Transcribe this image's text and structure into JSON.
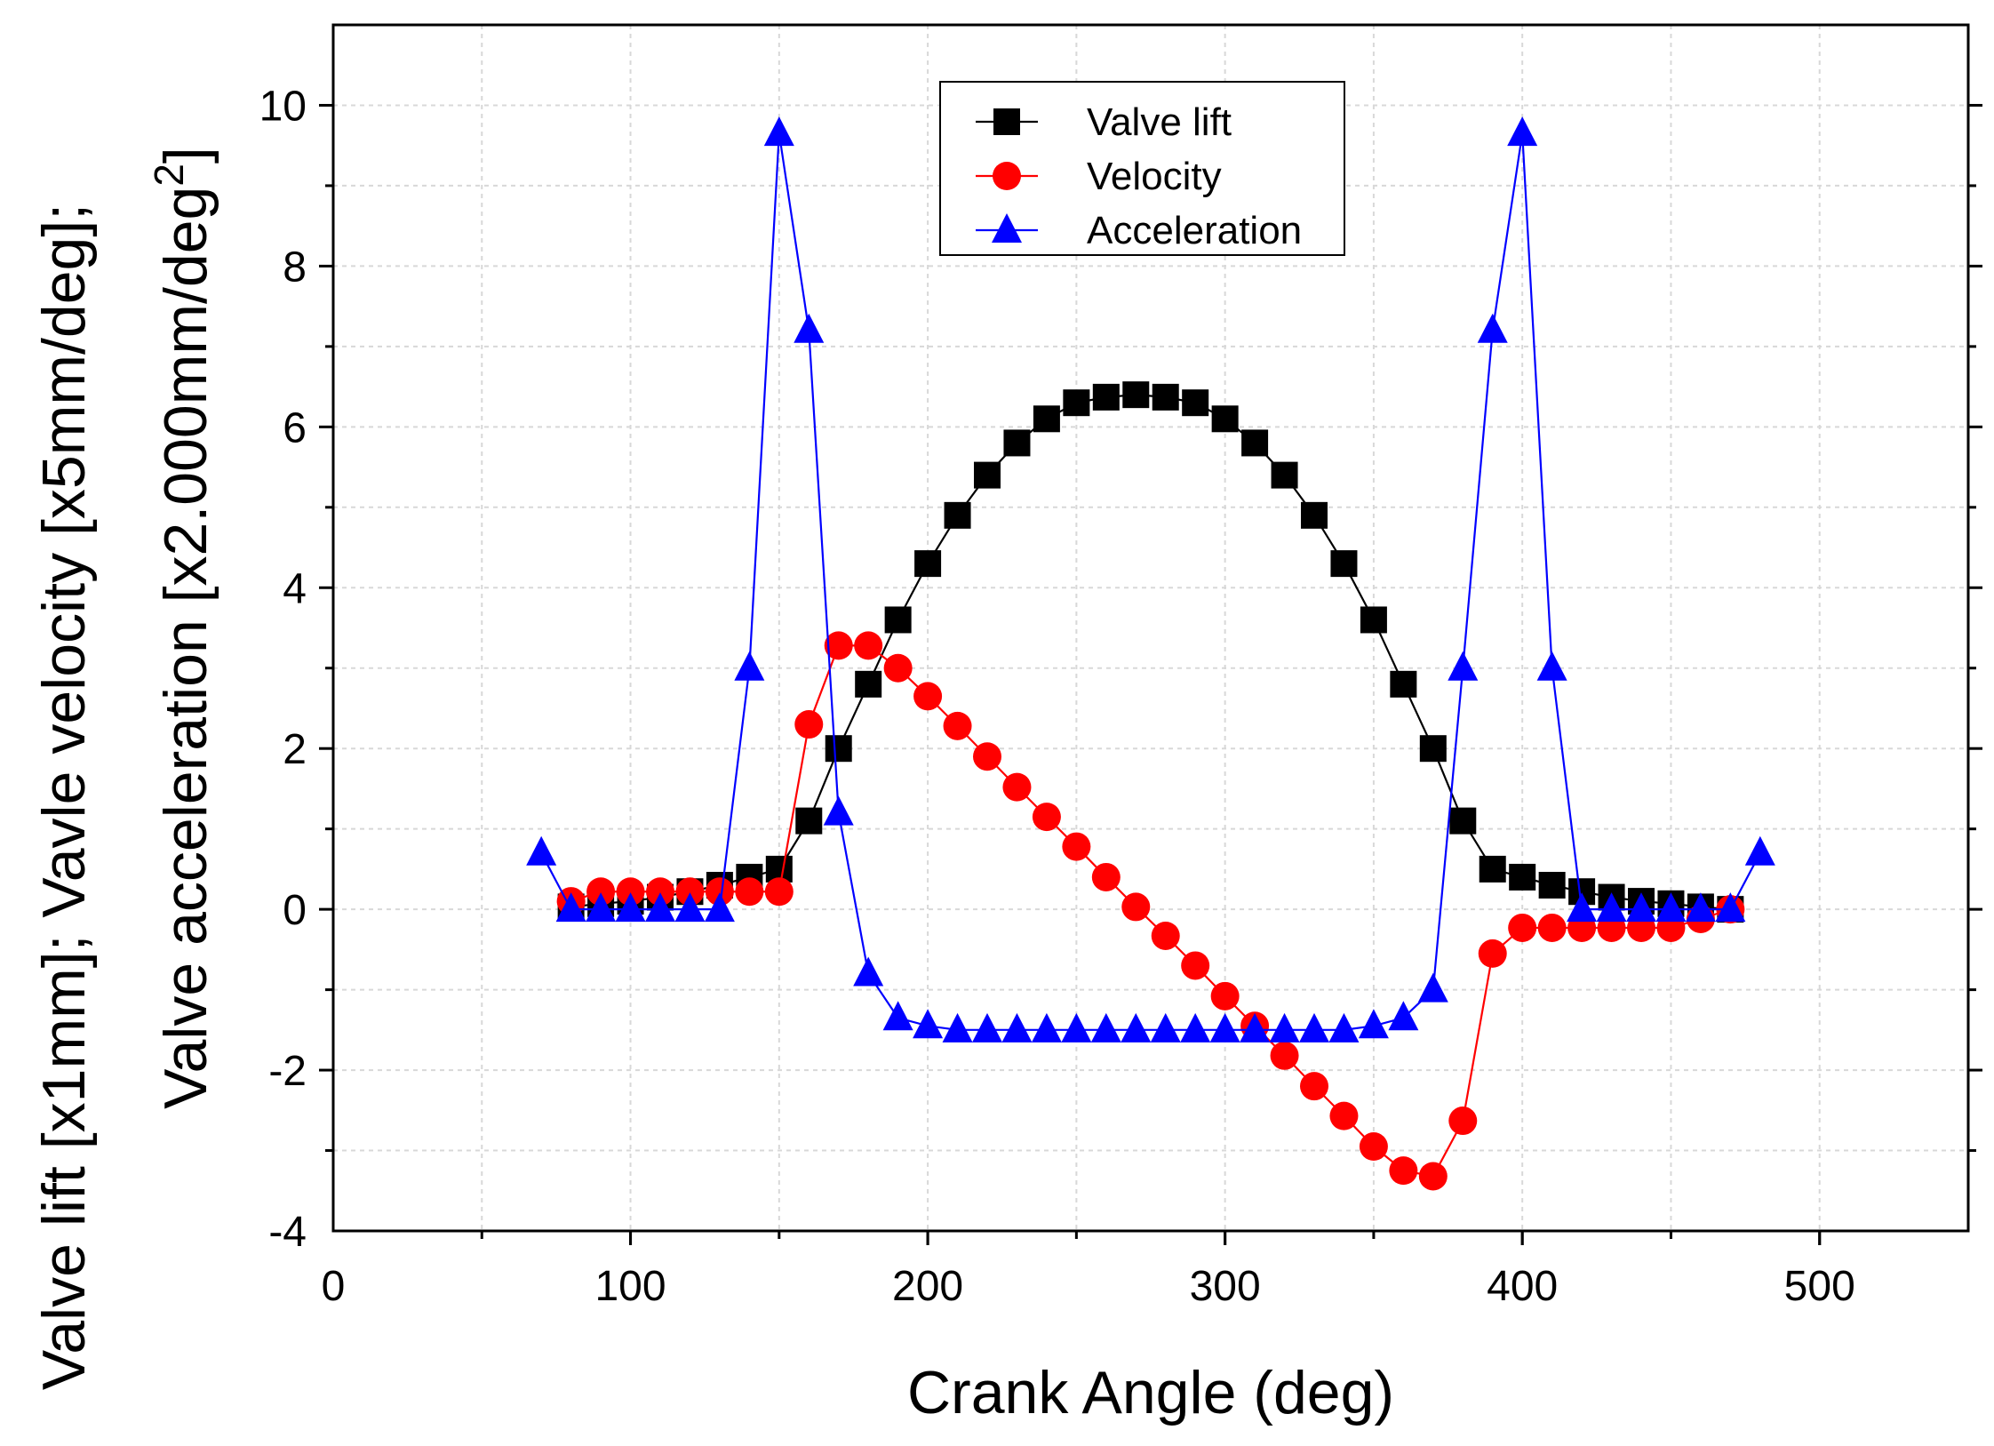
{
  "chart_data": {
    "type": "line",
    "xlabel": "Crank Angle (deg)",
    "ylabel_line1": "Valve lift [x1mm]; Vavle velocity [x5mm/deg];",
    "ylabel_line2_prefix": "Valve acceleration [x2.000mm/deg",
    "ylabel_line2_sup": "2",
    "ylabel_line2_suffix": "]",
    "xlim": [
      0,
      550
    ],
    "ylim": [
      -4,
      11
    ],
    "x_ticks": [
      0,
      100,
      200,
      300,
      400,
      500
    ],
    "x_tick_labels": [
      "0",
      "100",
      "200",
      "300",
      "400",
      "500"
    ],
    "y_ticks": [
      -4,
      -2,
      0,
      2,
      4,
      6,
      8,
      10
    ],
    "y_tick_labels": [
      "-4",
      "-2",
      "0",
      "2",
      "4",
      "6",
      "8",
      "10"
    ],
    "grid": true,
    "legend_position": "top-center",
    "series": [
      {
        "name": "Valve lift",
        "color": "#000000",
        "marker": "square",
        "x": [
          80,
          90,
          100,
          110,
          120,
          130,
          140,
          150,
          160,
          170,
          180,
          190,
          200,
          210,
          220,
          230,
          240,
          250,
          260,
          270,
          280,
          290,
          300,
          310,
          320,
          330,
          340,
          350,
          360,
          370,
          380,
          390,
          400,
          410,
          420,
          430,
          440,
          450,
          460,
          470
        ],
        "y": [
          0.03,
          0.07,
          0.1,
          0.15,
          0.22,
          0.3,
          0.4,
          0.5,
          1.1,
          2.0,
          2.8,
          3.6,
          4.3,
          4.9,
          5.4,
          5.8,
          6.1,
          6.3,
          6.37,
          6.4,
          6.37,
          6.3,
          6.1,
          5.8,
          5.4,
          4.9,
          4.3,
          3.6,
          2.8,
          2.0,
          1.1,
          0.5,
          0.4,
          0.3,
          0.22,
          0.15,
          0.1,
          0.07,
          0.03,
          0.0
        ]
      },
      {
        "name": "Velocity",
        "color": "#ff0000",
        "marker": "circle",
        "x": [
          80,
          90,
          100,
          110,
          120,
          130,
          140,
          150,
          160,
          170,
          180,
          190,
          200,
          210,
          220,
          230,
          240,
          250,
          260,
          270,
          280,
          290,
          300,
          310,
          320,
          330,
          340,
          350,
          360,
          370,
          380,
          390,
          400,
          410,
          420,
          430,
          440,
          450,
          460,
          470
        ],
        "y": [
          0.1,
          0.22,
          0.22,
          0.22,
          0.22,
          0.22,
          0.22,
          0.22,
          2.3,
          3.28,
          3.28,
          3.0,
          2.65,
          2.28,
          1.9,
          1.52,
          1.15,
          0.78,
          0.4,
          0.03,
          -0.33,
          -0.7,
          -1.08,
          -1.45,
          -1.82,
          -2.2,
          -2.57,
          -2.95,
          -3.25,
          -3.32,
          -2.63,
          -0.55,
          -0.23,
          -0.23,
          -0.23,
          -0.23,
          -0.23,
          -0.23,
          -0.12,
          -0.0
        ]
      },
      {
        "name": "Acceleration",
        "color": "#0000ff",
        "marker": "triangle",
        "x": [
          70,
          80,
          90,
          100,
          110,
          120,
          130,
          140,
          150,
          160,
          170,
          180,
          190,
          200,
          210,
          220,
          230,
          240,
          250,
          260,
          270,
          280,
          290,
          300,
          310,
          320,
          330,
          340,
          350,
          360,
          370,
          380,
          390,
          400,
          410,
          420,
          430,
          440,
          450,
          460,
          470,
          480
        ],
        "y": [
          0.7,
          0.0,
          0.0,
          0.0,
          0.0,
          0.0,
          0.0,
          3.0,
          9.65,
          7.2,
          1.2,
          -0.8,
          -1.35,
          -1.45,
          -1.5,
          -1.5,
          -1.5,
          -1.5,
          -1.5,
          -1.5,
          -1.5,
          -1.5,
          -1.5,
          -1.5,
          -1.5,
          -1.5,
          -1.5,
          -1.5,
          -1.45,
          -1.35,
          -1.0,
          3.0,
          7.2,
          9.65,
          3.0,
          0.0,
          0.0,
          0.0,
          0.0,
          0.0,
          0.0,
          0.7
        ]
      }
    ]
  }
}
